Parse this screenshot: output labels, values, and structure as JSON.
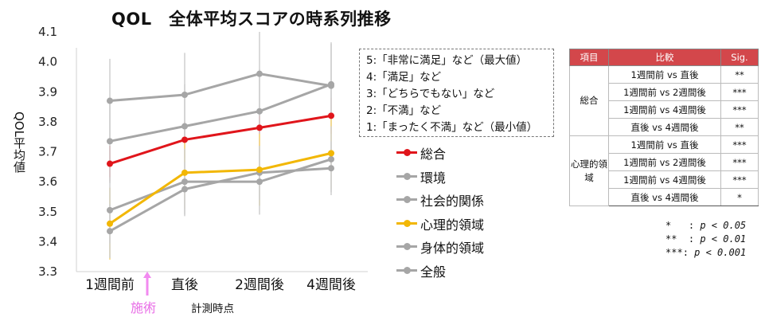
{
  "chart_data": {
    "type": "line",
    "title": "QOL　全体平均スコアの時系列推移",
    "ylabel": "QOL平均値",
    "xlabel": "計測時点",
    "categories": [
      "1週間前",
      "直後",
      "2週間後",
      "4週間後"
    ],
    "ylim": [
      3.3,
      4.1
    ],
    "y_ticks": [
      "3.3",
      "3.4",
      "3.5",
      "3.6",
      "3.7",
      "3.8",
      "3.9",
      "4.0",
      "4.1"
    ],
    "y_tick_values": [
      3.3,
      3.4,
      3.5,
      3.6,
      3.7,
      3.8,
      3.9,
      4.0,
      4.1
    ],
    "grid": false,
    "series": [
      {
        "name": "総合",
        "color": "#e0151b",
        "values": [
          3.66,
          3.74,
          3.78,
          3.82
        ],
        "error": [
          0.06,
          0.06,
          0.06,
          0.06
        ]
      },
      {
        "name": "環境",
        "color": "#a6a6a6",
        "values": [
          3.87,
          3.89,
          3.96,
          3.92
        ],
        "error": [
          0.14,
          0.14,
          0.14,
          0.14
        ]
      },
      {
        "name": "社会的関係",
        "color": "#a6a6a6",
        "values": [
          3.735,
          3.785,
          3.835,
          3.925
        ],
        "error": [
          0.14,
          0.14,
          0.14,
          0.14
        ]
      },
      {
        "name": "心理的領域",
        "color": "#f2b705",
        "values": [
          3.46,
          3.63,
          3.64,
          3.695
        ],
        "error": [
          0.12,
          0.12,
          0.12,
          0.12
        ]
      },
      {
        "name": "身体的領域",
        "color": "#a6a6a6",
        "values": [
          3.505,
          3.6,
          3.6,
          3.675
        ],
        "error": [
          0.11,
          0.11,
          0.11,
          0.11
        ]
      },
      {
        "name": "全般",
        "color": "#a6a6a6",
        "values": [
          3.435,
          3.575,
          3.63,
          3.645
        ],
        "error": [
          0.09,
          0.09,
          0.09,
          0.09
        ]
      }
    ]
  },
  "scale_labels": [
    "5:「非常に満足」など（最大値）",
    "4:「満足」など",
    "3:「どちらでもない」など",
    "2:「不満」など",
    "1:「まったく不満」など（最小値）"
  ],
  "intervention": {
    "label": "施術",
    "color": "#f28af0"
  },
  "sig_table": {
    "headers": [
      "項目",
      "比較",
      "Sig."
    ],
    "groups": [
      {
        "item": "総合",
        "rows": [
          {
            "comparison": "1週間前 vs 直後",
            "sig": "**"
          },
          {
            "comparison": "1週間前 vs 2週間後",
            "sig": "***"
          },
          {
            "comparison": "1週間前 vs 4週間後",
            "sig": "***"
          },
          {
            "comparison": "直後 vs 4週間後",
            "sig": "**"
          }
        ]
      },
      {
        "item": "心理的領域",
        "rows": [
          {
            "comparison": "1週間前 vs 直後",
            "sig": "***"
          },
          {
            "comparison": "1週間前 vs 2週間後",
            "sig": "***"
          },
          {
            "comparison": "1週間前 vs 4週間後",
            "sig": "***"
          },
          {
            "comparison": "直後 vs 4週間後",
            "sig": "*"
          }
        ]
      }
    ]
  },
  "sig_notes": [
    {
      "mark": "*   ",
      "text": "p < 0.05"
    },
    {
      "mark": "**  ",
      "text": "p < 0.01"
    },
    {
      "mark": "***",
      "text": "p < 0.001"
    }
  ]
}
